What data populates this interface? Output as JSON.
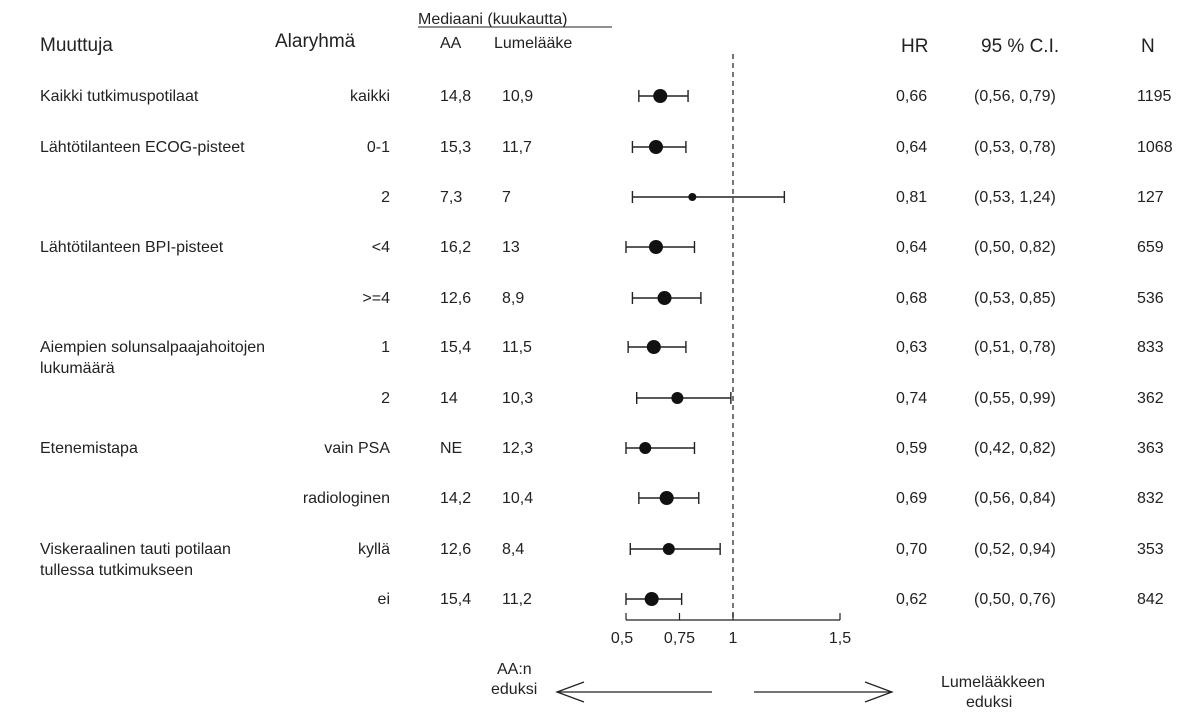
{
  "header": {
    "variable": "Muuttuja",
    "subgroup": "Alaryhmä",
    "median_title": "Mediaani (kuukautta)",
    "col_aa": "AA",
    "col_placebo": "Lumelääke",
    "col_hr": "HR",
    "col_ci": "95 % C.I.",
    "col_n": "N"
  },
  "footer": {
    "left_label_1": "AA:n",
    "left_label_2": "eduksi",
    "right_label_1": "Lumelääkkeen",
    "right_label_2": "eduksi"
  },
  "chart_data": {
    "type": "forest",
    "reference_line": 1,
    "xticks": [
      0.5,
      0.75,
      1,
      1.5
    ],
    "xtick_labels": [
      "0,5",
      "0,75",
      "1",
      "1,5"
    ],
    "xlim": [
      0.5,
      1.5
    ],
    "rows": [
      {
        "variable": "Kaikki tutkimuspotilaat",
        "subgroup": "kaikki",
        "aa": "14,8",
        "placebo": "10,9",
        "hr_label": "0,66",
        "ci_label": "(0,56, 0,79)",
        "n": "1195",
        "hr": 0.66,
        "lo": 0.56,
        "hi": 0.79
      },
      {
        "variable": "Lähtötilanteen ECOG-pisteet",
        "subgroup": "0-1",
        "aa": "15,3",
        "placebo": "11,7",
        "hr_label": "0,64",
        "ci_label": "(0,53, 0,78)",
        "n": "1068",
        "hr": 0.64,
        "lo": 0.53,
        "hi": 0.78
      },
      {
        "variable": "",
        "subgroup": "2",
        "aa": "7,3",
        "placebo": "7",
        "hr_label": "0,81",
        "ci_label": "(0,53, 1,24)",
        "n": "127",
        "hr": 0.81,
        "lo": 0.53,
        "hi": 1.24
      },
      {
        "variable": "Lähtötilanteen BPI-pisteet",
        "subgroup": "<4",
        "aa": "16,2",
        "placebo": "13",
        "hr_label": "0,64",
        "ci_label": "(0,50, 0,82)",
        "n": "659",
        "hr": 0.64,
        "lo": 0.5,
        "hi": 0.82
      },
      {
        "variable": "",
        "subgroup": ">=4",
        "aa": "12,6",
        "placebo": "8,9",
        "hr_label": "0,68",
        "ci_label": "(0,53, 0,85)",
        "n": "536",
        "hr": 0.68,
        "lo": 0.53,
        "hi": 0.85
      },
      {
        "variable": "Aiempien solunsalpaajahoitojen",
        "variable_2": "lukumäärä",
        "subgroup": "1",
        "aa": "15,4",
        "placebo": "11,5",
        "hr_label": "0,63",
        "ci_label": "(0,51, 0,78)",
        "n": "833",
        "hr": 0.63,
        "lo": 0.51,
        "hi": 0.78
      },
      {
        "variable": "",
        "subgroup": "2",
        "aa": "14",
        "placebo": "10,3",
        "hr_label": "0,74",
        "ci_label": "(0,55, 0,99)",
        "n": "362",
        "hr": 0.74,
        "lo": 0.55,
        "hi": 0.99
      },
      {
        "variable": "Etenemistapa",
        "subgroup": "vain PSA",
        "aa": "NE",
        "placebo": "12,3",
        "hr_label": "0,59",
        "ci_label": "(0,42, 0,82)",
        "n": "363",
        "hr": 0.59,
        "lo": 0.42,
        "hi": 0.82
      },
      {
        "variable": "",
        "subgroup": "radiologinen",
        "aa": "14,2",
        "placebo": "10,4",
        "hr_label": "0,69",
        "ci_label": "(0,56, 0,84)",
        "n": "832",
        "hr": 0.69,
        "lo": 0.56,
        "hi": 0.84
      },
      {
        "variable": "Viskeraalinen tauti potilaan",
        "variable_2": "tullessa tutkimukseen",
        "subgroup": "kyllä",
        "aa": "12,6",
        "placebo": "8,4",
        "hr_label": "0,70",
        "ci_label": "(0,52, 0,94)",
        "n": "353",
        "hr": 0.7,
        "lo": 0.52,
        "hi": 0.94
      },
      {
        "variable": "",
        "subgroup": "ei",
        "aa": "15,4",
        "placebo": "11,2",
        "hr_label": "0,62",
        "ci_label": "(0,50, 0,76)",
        "n": "842",
        "hr": 0.62,
        "lo": 0.5,
        "hi": 0.76
      }
    ]
  }
}
